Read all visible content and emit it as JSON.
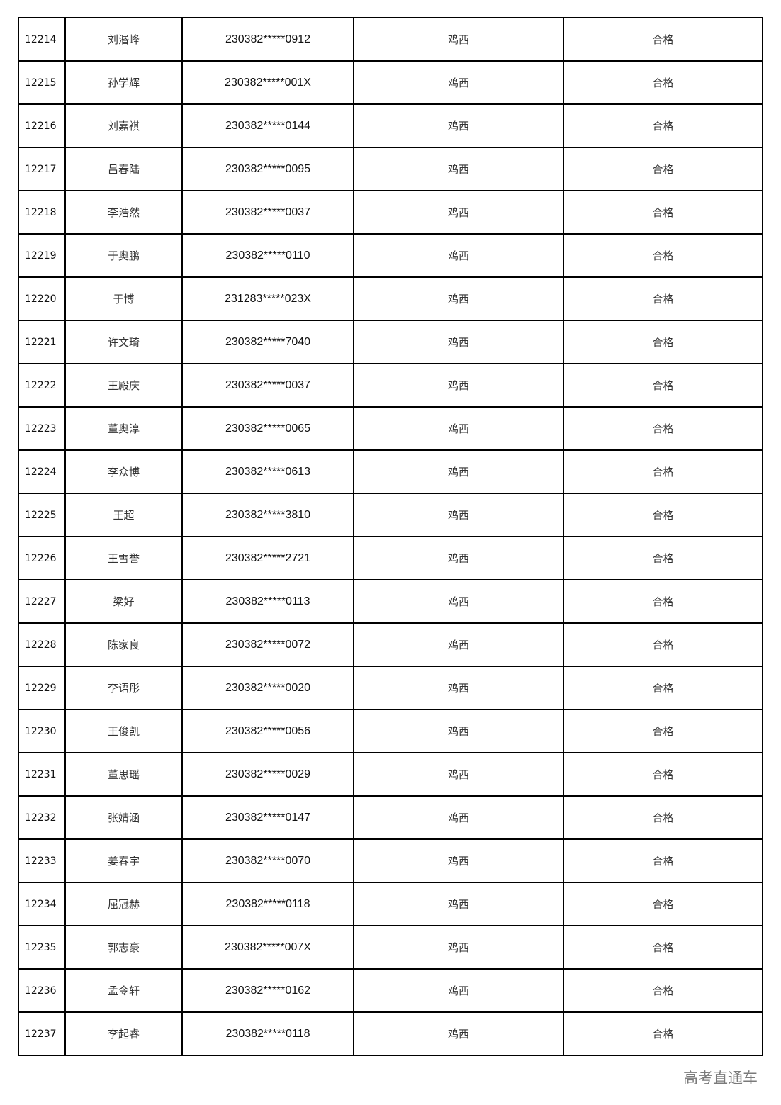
{
  "rows": [
    {
      "no": "12214",
      "name": "刘湣峰",
      "id": "230382*****0912",
      "region": "鸡西",
      "result": "合格"
    },
    {
      "no": "12215",
      "name": "孙学辉",
      "id": "230382*****001X",
      "region": "鸡西",
      "result": "合格"
    },
    {
      "no": "12216",
      "name": "刘嘉祺",
      "id": "230382*****0144",
      "region": "鸡西",
      "result": "合格"
    },
    {
      "no": "12217",
      "name": "吕春陆",
      "id": "230382*****0095",
      "region": "鸡西",
      "result": "合格"
    },
    {
      "no": "12218",
      "name": "李浩然",
      "id": "230382*****0037",
      "region": "鸡西",
      "result": "合格"
    },
    {
      "no": "12219",
      "name": "于奥鹏",
      "id": "230382*****0110",
      "region": "鸡西",
      "result": "合格"
    },
    {
      "no": "12220",
      "name": "于博",
      "id": "231283*****023X",
      "region": "鸡西",
      "result": "合格"
    },
    {
      "no": "12221",
      "name": "许文琦",
      "id": "230382*****7040",
      "region": "鸡西",
      "result": "合格"
    },
    {
      "no": "12222",
      "name": "王殿庆",
      "id": "230382*****0037",
      "region": "鸡西",
      "result": "合格"
    },
    {
      "no": "12223",
      "name": "董奥淳",
      "id": "230382*****0065",
      "region": "鸡西",
      "result": "合格"
    },
    {
      "no": "12224",
      "name": "李众博",
      "id": "230382*****0613",
      "region": "鸡西",
      "result": "合格"
    },
    {
      "no": "12225",
      "name": "王超",
      "id": "230382*****3810",
      "region": "鸡西",
      "result": "合格"
    },
    {
      "no": "12226",
      "name": "王雪誉",
      "id": "230382*****2721",
      "region": "鸡西",
      "result": "合格"
    },
    {
      "no": "12227",
      "name": "梁好",
      "id": "230382*****0113",
      "region": "鸡西",
      "result": "合格"
    },
    {
      "no": "12228",
      "name": "陈家良",
      "id": "230382*****0072",
      "region": "鸡西",
      "result": "合格"
    },
    {
      "no": "12229",
      "name": "李语彤",
      "id": "230382*****0020",
      "region": "鸡西",
      "result": "合格"
    },
    {
      "no": "12230",
      "name": "王俊凯",
      "id": "230382*****0056",
      "region": "鸡西",
      "result": "合格"
    },
    {
      "no": "12231",
      "name": "董思瑶",
      "id": "230382*****0029",
      "region": "鸡西",
      "result": "合格"
    },
    {
      "no": "12232",
      "name": "张婧涵",
      "id": "230382*****0147",
      "region": "鸡西",
      "result": "合格"
    },
    {
      "no": "12233",
      "name": "姜春宇",
      "id": "230382*****0070",
      "region": "鸡西",
      "result": "合格"
    },
    {
      "no": "12234",
      "name": "屈冠赫",
      "id": "230382*****0118",
      "region": "鸡西",
      "result": "合格"
    },
    {
      "no": "12235",
      "name": "郭志豪",
      "id": "230382*****007X",
      "region": "鸡西",
      "result": "合格"
    },
    {
      "no": "12236",
      "name": "孟令轩",
      "id": "230382*****0162",
      "region": "鸡西",
      "result": "合格"
    },
    {
      "no": "12237",
      "name": "李起睿",
      "id": "230382*****0118",
      "region": "鸡西",
      "result": "合格"
    }
  ],
  "watermark": "高考直通车"
}
